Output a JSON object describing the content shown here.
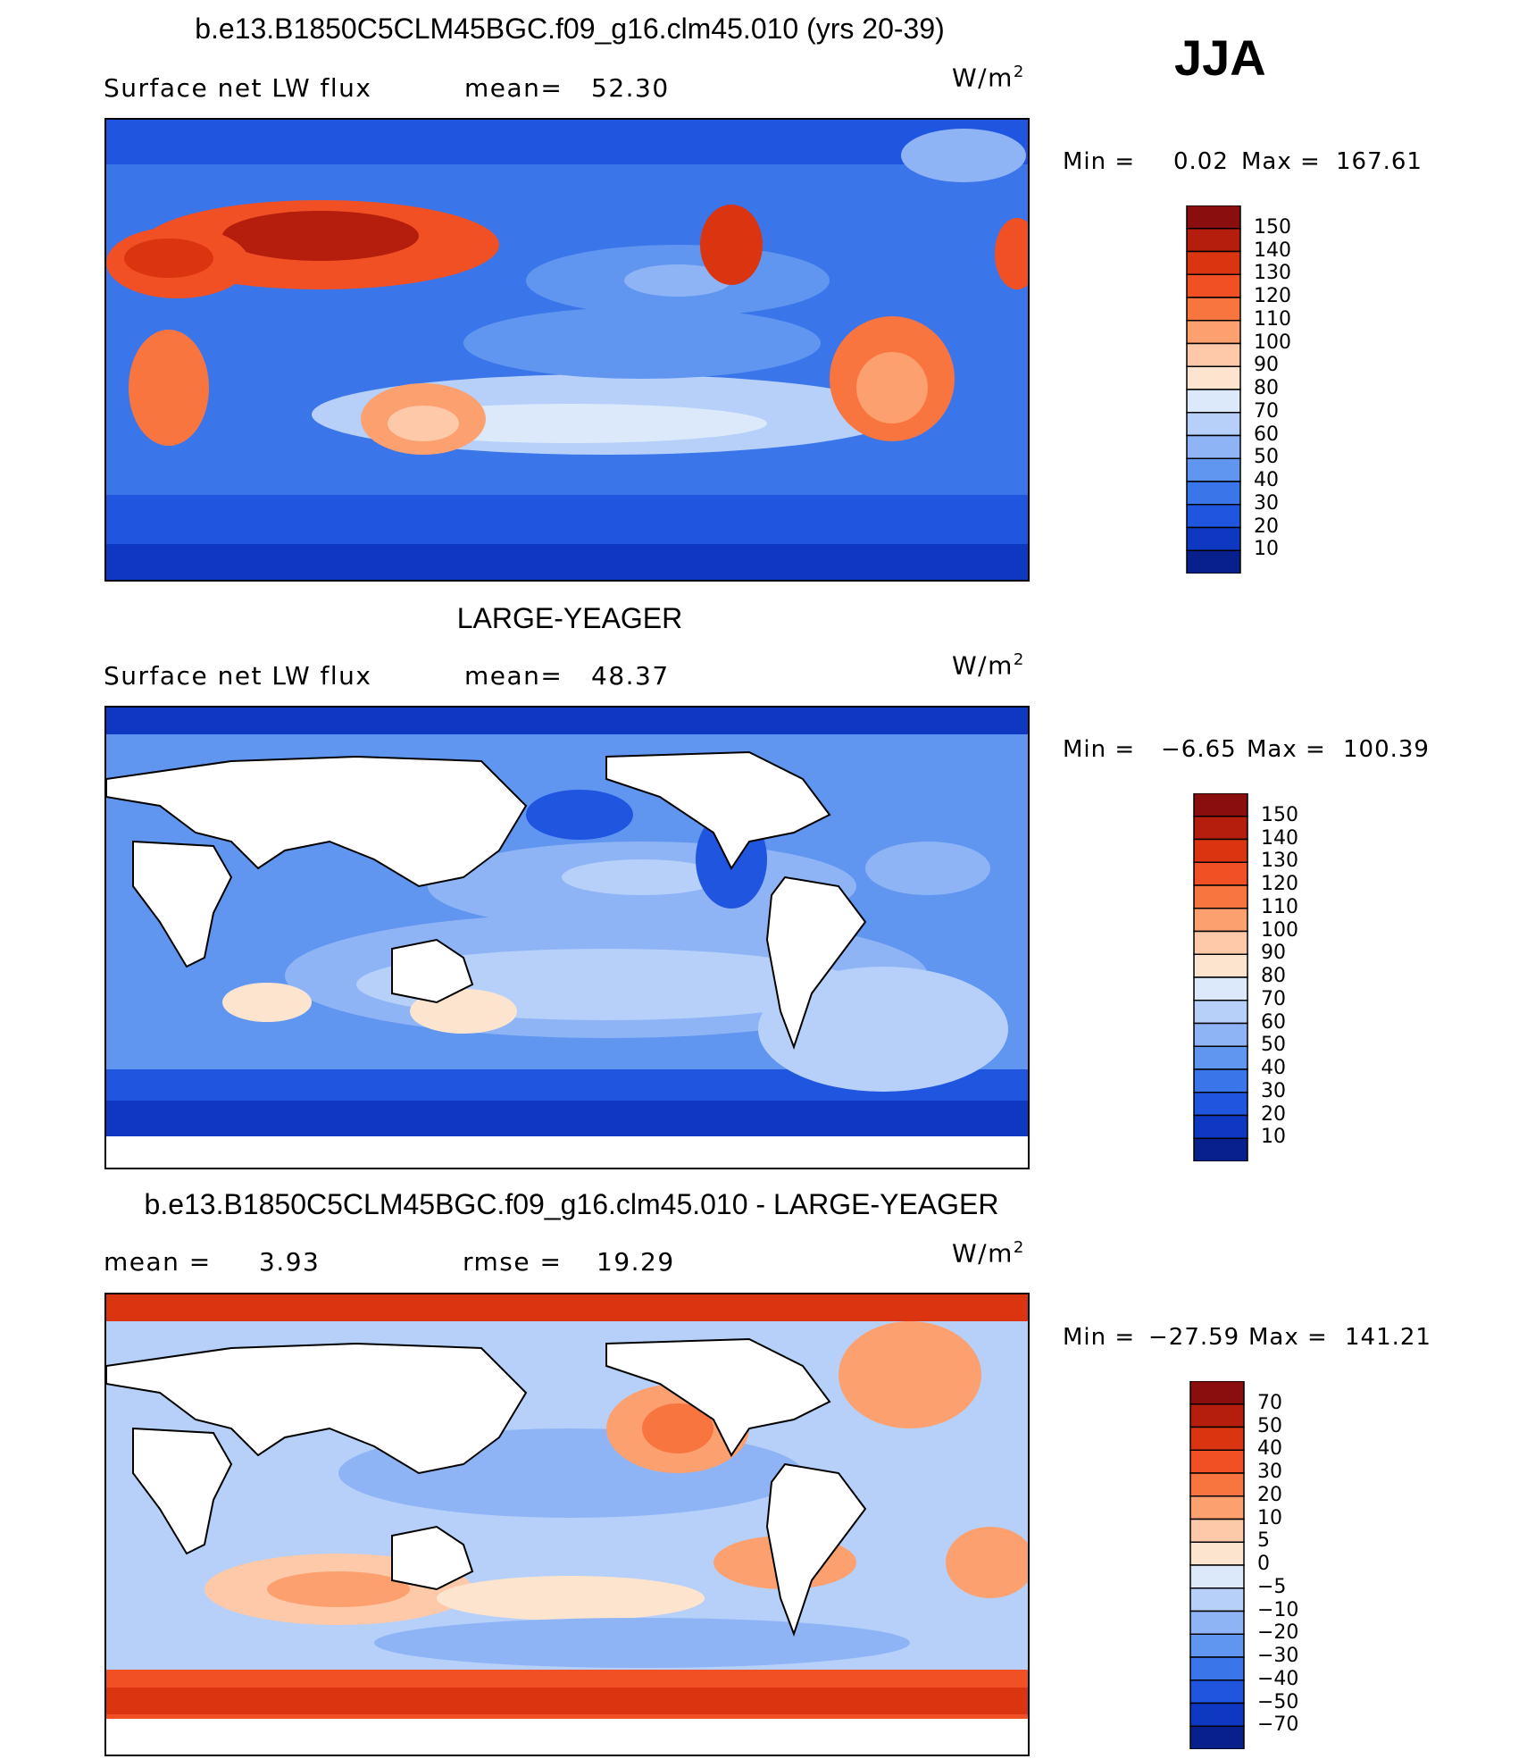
{
  "season": "JJA",
  "units_base": "W/m",
  "units_exp": "2",
  "panels": [
    {
      "title": "b.e13.B1850C5CLM45BGC.f09_g16.clm45.010 (yrs 20-39)",
      "left_label": "Surface net LW flux",
      "stat1_label": "mean=",
      "stat1_value": "52.30",
      "stat2_label": "",
      "stat2_value": "",
      "min_label": "Min =",
      "min_value": "0.02",
      "max_label": "Max =",
      "max_value": "167.61",
      "colorbar": {
        "labels": [
          "150",
          "140",
          "130",
          "120",
          "110",
          "100",
          "90",
          "80",
          "70",
          "60",
          "50",
          "40",
          "30",
          "20",
          "10"
        ],
        "colors": [
          "#8b0e0e",
          "#b51d0c",
          "#da3510",
          "#f05024",
          "#f9753f",
          "#fca06f",
          "#fdc9a8",
          "#fde4cf",
          "#dbe9fb",
          "#b6d0fa",
          "#8fb4f6",
          "#6095f0",
          "#3a76ea",
          "#1f55df",
          "#0f38c2",
          "#08208c"
        ]
      }
    },
    {
      "title": "LARGE-YEAGER",
      "left_label": "Surface net LW flux",
      "stat1_label": "mean=",
      "stat1_value": "48.37",
      "stat2_label": "",
      "stat2_value": "",
      "min_label": "Min =",
      "min_value": "−6.65",
      "max_label": "Max =",
      "max_value": "100.39",
      "colorbar": {
        "labels": [
          "150",
          "140",
          "130",
          "120",
          "110",
          "100",
          "90",
          "80",
          "70",
          "60",
          "50",
          "40",
          "30",
          "20",
          "10"
        ],
        "colors": [
          "#8b0e0e",
          "#b51d0c",
          "#da3510",
          "#f05024",
          "#f9753f",
          "#fca06f",
          "#fdc9a8",
          "#fde4cf",
          "#dbe9fb",
          "#b6d0fa",
          "#8fb4f6",
          "#6095f0",
          "#3a76ea",
          "#1f55df",
          "#0f38c2",
          "#08208c"
        ]
      }
    },
    {
      "title": "b.e13.B1850C5CLM45BGC.f09_g16.clm45.010 - LARGE-YEAGER",
      "left_label": "mean =",
      "stat1_label": "",
      "stat1_value": "3.93",
      "stat2_label": "rmse =",
      "stat2_value": "19.29",
      "min_label": "Min =",
      "min_value": "−27.59",
      "max_label": "Max =",
      "max_value": "141.21",
      "colorbar": {
        "labels": [
          "70",
          "50",
          "40",
          "30",
          "20",
          "10",
          "5",
          "0",
          "−5",
          "−10",
          "−20",
          "−30",
          "−40",
          "−50",
          "−70"
        ],
        "colors": [
          "#8b0e0e",
          "#b51d0c",
          "#da3510",
          "#f05024",
          "#f9753f",
          "#fca06f",
          "#fdc9a8",
          "#fde4cf",
          "#dbe9fb",
          "#b6d0fa",
          "#8fb4f6",
          "#6095f0",
          "#3a76ea",
          "#1f55df",
          "#0f38c2",
          "#08208c"
        ]
      }
    }
  ],
  "chart_data": [
    {
      "type": "heatmap",
      "title": "b.e13.B1850C5CLM45BGC.f09_g16.clm45.010 (yrs 20-39)",
      "variable": "Surface net LW flux",
      "units": "W/m2",
      "mean": 52.3,
      "min": 0.02,
      "max": 167.61,
      "contour_levels": [
        10,
        20,
        30,
        40,
        50,
        60,
        70,
        80,
        90,
        100,
        110,
        120,
        130,
        140,
        150
      ]
    },
    {
      "type": "heatmap",
      "title": "LARGE-YEAGER",
      "variable": "Surface net LW flux",
      "units": "W/m2",
      "mean": 48.37,
      "min": -6.65,
      "max": 100.39,
      "contour_levels": [
        10,
        20,
        30,
        40,
        50,
        60,
        70,
        80,
        90,
        100,
        110,
        120,
        130,
        140,
        150
      ]
    },
    {
      "type": "heatmap",
      "title": "b.e13.B1850C5CLM45BGC.f09_g16.clm45.010 - LARGE-YEAGER",
      "units": "W/m2",
      "mean": 3.93,
      "rmse": 19.29,
      "min": -27.59,
      "max": 141.21,
      "contour_levels": [
        -70,
        -50,
        -40,
        -30,
        -20,
        -10,
        -5,
        0,
        5,
        10,
        20,
        30,
        40,
        50,
        70
      ]
    }
  ]
}
